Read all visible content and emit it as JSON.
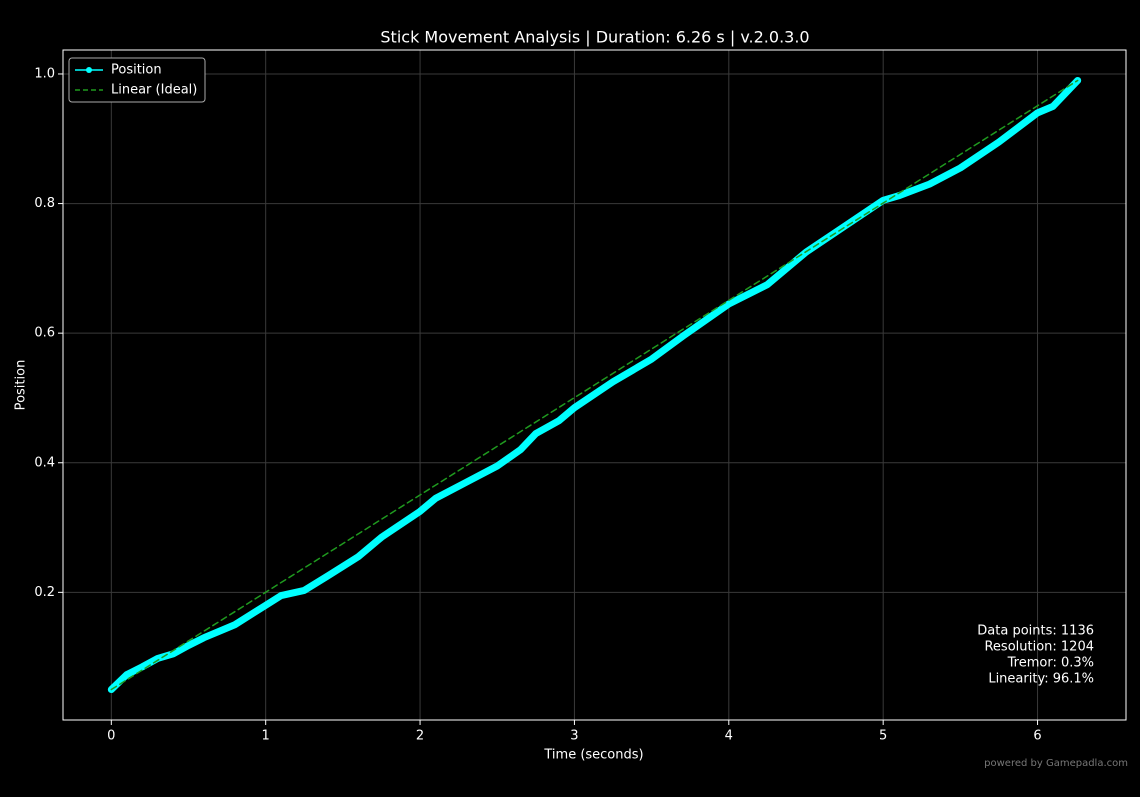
{
  "chart_data": {
    "type": "line",
    "title": "Stick Movement Analysis | Duration: 6.26 s | v.2.0.3.0",
    "xlabel": "Time (seconds)",
    "ylabel": "Position",
    "xlim": [
      -0.313,
      6.573
    ],
    "ylim": [
      0.003,
      1.037
    ],
    "xticks": [
      0,
      1,
      2,
      3,
      4,
      5,
      6
    ],
    "yticks": [
      0.2,
      0.4,
      0.6,
      0.8,
      {
        "value": 1,
        "label": "1.0"
      }
    ],
    "grid": true,
    "legend": "upper left",
    "series": [
      {
        "name": "Position",
        "color": "#00ffff",
        "style": "solid",
        "x": [
          0,
          0.1,
          0.2,
          0.3,
          0.4,
          0.5,
          0.6,
          0.8,
          1.0,
          1.1,
          1.25,
          1.4,
          1.6,
          1.75,
          2.0,
          2.1,
          2.3,
          2.5,
          2.65,
          2.75,
          2.9,
          3.0,
          3.25,
          3.5,
          3.7,
          4.0,
          4.25,
          4.5,
          4.75,
          5.0,
          5.1,
          5.3,
          5.5,
          5.75,
          6.0,
          6.1,
          6.26
        ],
        "values": [
          0.05,
          0.073,
          0.085,
          0.098,
          0.105,
          0.118,
          0.13,
          0.15,
          0.18,
          0.195,
          0.203,
          0.225,
          0.255,
          0.285,
          0.325,
          0.345,
          0.37,
          0.395,
          0.42,
          0.445,
          0.465,
          0.485,
          0.525,
          0.56,
          0.595,
          0.645,
          0.675,
          0.725,
          0.765,
          0.805,
          0.812,
          0.83,
          0.855,
          0.895,
          0.94,
          0.95,
          0.99
        ]
      },
      {
        "name": "Linear (Ideal)",
        "color": "#1f9a1f",
        "style": "dashed",
        "x": [
          0,
          6.26
        ],
        "values": [
          0.05,
          0.99
        ]
      }
    ],
    "annotations": [
      "Data points: 1136",
      "Resolution: 1204",
      "Tremor: 0.3%",
      "Linearity: 96.1%"
    ]
  },
  "footer": "powered by Gamepadla.com"
}
